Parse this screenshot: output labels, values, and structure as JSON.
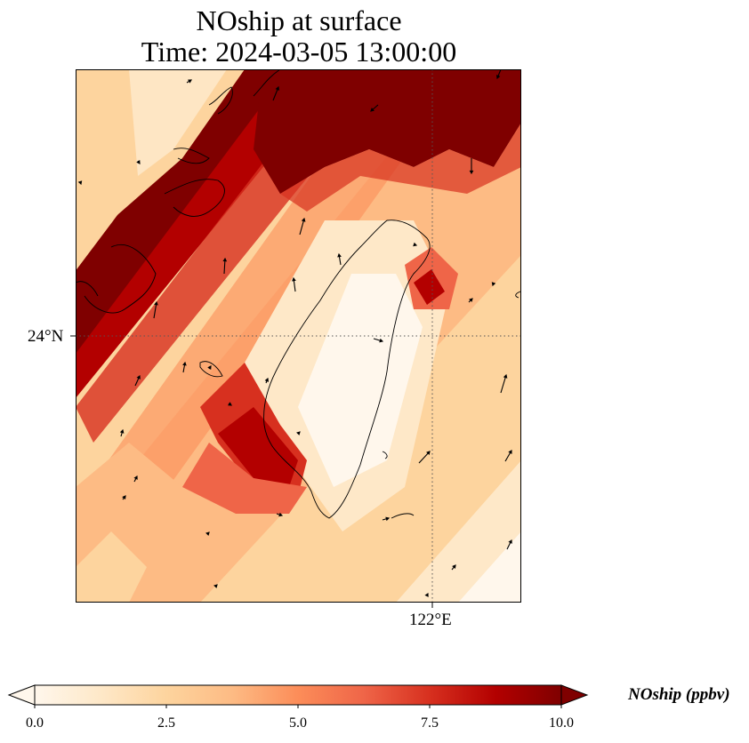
{
  "title": {
    "line1": "NOship at surface",
    "line2": "Time: 2024-03-05 13:00:00"
  },
  "axes": {
    "lat_tick": "24°N",
    "lon_tick": "122°E",
    "gridlines": "dotted"
  },
  "colorbar": {
    "label": "NOship (ppbv)",
    "ticks": [
      "0.0",
      "2.5",
      "5.0",
      "7.5",
      "10.0"
    ],
    "min": 0,
    "max": 10,
    "extend": "both",
    "colormap": [
      "#fff7ec",
      "#fee8c8",
      "#fdd49e",
      "#fdbb84",
      "#fc8d59",
      "#ef6548",
      "#d7301f",
      "#b30000",
      "#7f0000"
    ]
  },
  "map": {
    "field": "NOship",
    "units": "ppbv",
    "features": [
      "coastline",
      "wind-vectors"
    ]
  }
}
